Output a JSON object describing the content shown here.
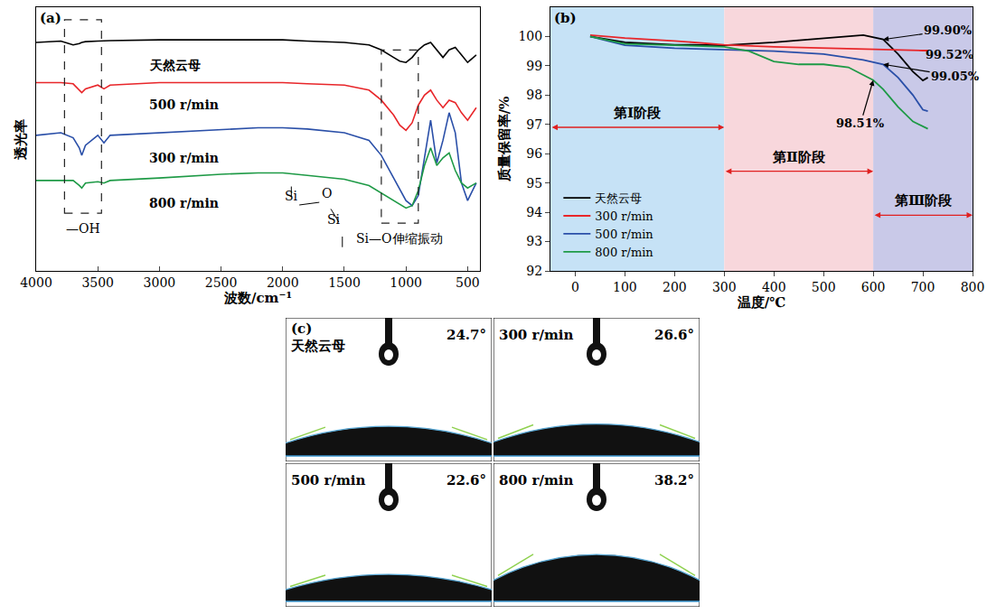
{
  "chart_data": [
    {
      "letter": "(a)",
      "type": "line",
      "x_label": "波数/cm⁻¹",
      "y_label": "透光率",
      "x": [
        4000,
        3800,
        3700,
        3650,
        3630,
        3600,
        3500,
        3450,
        3400,
        3000,
        2500,
        2200,
        2000,
        1800,
        1500,
        1300,
        1200,
        1100,
        1050,
        1000,
        950,
        900,
        850,
        800,
        750,
        700,
        650,
        600,
        550,
        500,
        430
      ],
      "series": [
        {
          "name": "天然云母",
          "color": "#000000",
          "values": [
            91,
            91.5,
            90,
            90.5,
            91,
            91.3,
            91.5,
            91.5,
            91.7,
            92,
            92,
            92,
            92,
            91.5,
            91,
            90,
            88,
            85,
            83.5,
            83,
            85,
            88,
            90,
            91,
            88,
            85,
            88,
            89,
            86,
            83,
            86
          ]
        },
        {
          "name": "500 r/min",
          "color": "#e8262a",
          "values": [
            75,
            75,
            74.5,
            72,
            71,
            72.5,
            74,
            72.5,
            74,
            75,
            75,
            75,
            75,
            74.5,
            74,
            72,
            68,
            62,
            58,
            56,
            59,
            66,
            70,
            72,
            68,
            65,
            68,
            67,
            63,
            60,
            65
          ]
        },
        {
          "name": "300 r/min",
          "color": "#2a4fa8",
          "values": [
            54,
            55,
            53,
            49,
            46,
            50,
            54,
            51,
            54,
            55,
            56.5,
            57,
            57,
            56.5,
            55,
            52,
            46,
            37,
            32,
            28,
            26,
            30,
            45,
            60,
            43,
            52,
            63,
            55,
            35,
            28,
            35
          ]
        },
        {
          "name": "800 r/min",
          "color": "#1e9a46",
          "values": [
            36,
            36,
            36,
            34,
            33,
            35,
            35.5,
            35,
            36,
            37,
            38.5,
            39,
            39,
            38,
            36.5,
            34,
            31,
            28,
            26.5,
            25,
            26,
            32,
            42,
            49,
            42,
            45,
            47,
            40,
            35,
            33,
            35
          ]
        }
      ],
      "xlim": [
        4000,
        400
      ],
      "ylim": [
        0,
        105
      ],
      "xticks": [
        4000,
        3500,
        3000,
        2500,
        2000,
        1500,
        1000,
        500
      ],
      "yticks": [],
      "tick_labels": "x",
      "grid": false,
      "regions": [
        {
          "label": "—OH",
          "x": [
            3770,
            3470
          ],
          "y": [
            23,
            100
          ]
        },
        {
          "label": "Si—O伸缩振动",
          "x": [
            1200,
            900
          ],
          "y": [
            19,
            88
          ]
        }
      ],
      "structure": [
        "Si",
        "O",
        "Si"
      ]
    },
    {
      "letter": "(b)",
      "type": "line",
      "x_label": "温度/℃",
      "y_label": "质量保留率/%",
      "series": [
        {
          "name": "天然云母",
          "color": "#000000",
          "x": [
            30,
            100,
            200,
            300,
            400,
            500,
            580,
            620,
            650,
            680,
            700,
            710
          ],
          "values": [
            100,
            99.8,
            99.72,
            99.7,
            99.8,
            99.95,
            100.05,
            99.9,
            99.4,
            98.8,
            98.5,
            98.6
          ]
        },
        {
          "name": "300 r/min",
          "color": "#e8262a",
          "x": [
            30,
            100,
            200,
            300,
            400,
            500,
            600,
            700,
            710
          ],
          "values": [
            100.05,
            99.95,
            99.85,
            99.72,
            99.65,
            99.6,
            99.55,
            99.52,
            99.52
          ]
        },
        {
          "name": "500 r/min",
          "color": "#2a4fa8",
          "x": [
            30,
            100,
            200,
            300,
            400,
            500,
            580,
            620,
            650,
            680,
            700,
            710
          ],
          "values": [
            100,
            99.7,
            99.6,
            99.55,
            99.5,
            99.4,
            99.2,
            99.05,
            98.6,
            98,
            97.5,
            97.45
          ]
        },
        {
          "name": "800 r/min",
          "color": "#1e9a46",
          "x": [
            30,
            100,
            200,
            300,
            350,
            400,
            450,
            500,
            550,
            600,
            620,
            650,
            680,
            710
          ],
          "values": [
            100,
            99.75,
            99.7,
            99.65,
            99.5,
            99.15,
            99.05,
            99.05,
            98.95,
            98.51,
            98.2,
            97.6,
            97.1,
            96.85
          ]
        }
      ],
      "xlim": [
        -50,
        800
      ],
      "ylim": [
        92,
        101
      ],
      "xticks": [
        0,
        100,
        200,
        300,
        400,
        500,
        600,
        700,
        800
      ],
      "yticks": [
        92,
        93,
        94,
        95,
        96,
        97,
        98,
        99,
        100
      ],
      "grid": false,
      "legend": "lower left",
      "annotations": [
        {
          "text": "99.90%",
          "x": 620,
          "y": 99.9
        },
        {
          "text": "99.52%",
          "x": 700,
          "y": 99.52
        },
        {
          "text": "99.05%",
          "x": 620,
          "y": 99.05
        },
        {
          "text": "98.51%",
          "x": 600,
          "y": 98.51
        }
      ],
      "stages": [
        {
          "label": "第Ⅰ阶段",
          "x": [
            -50,
            300
          ],
          "y": 96.9,
          "color": "#c6e2f6"
        },
        {
          "label": "第Ⅱ阶段",
          "x": [
            300,
            600
          ],
          "y": 95.4,
          "color": "#f8d7dc"
        },
        {
          "label": "第Ⅲ阶段",
          "x": [
            600,
            800
          ],
          "y": 93.9,
          "color": "#c9c9e8"
        }
      ]
    }
  ],
  "panel_c": {
    "letter": "(c)",
    "samples": [
      {
        "label": "天然云母",
        "angle": 24.7,
        "angle_label": "24.7°"
      },
      {
        "label": "300 r/min",
        "angle": 26.6,
        "angle_label": "26.6°"
      },
      {
        "label": "500 r/min",
        "angle": 22.6,
        "angle_label": "22.6°"
      },
      {
        "label": "800 r/min",
        "angle": 38.2,
        "angle_label": "38.2°"
      }
    ]
  }
}
